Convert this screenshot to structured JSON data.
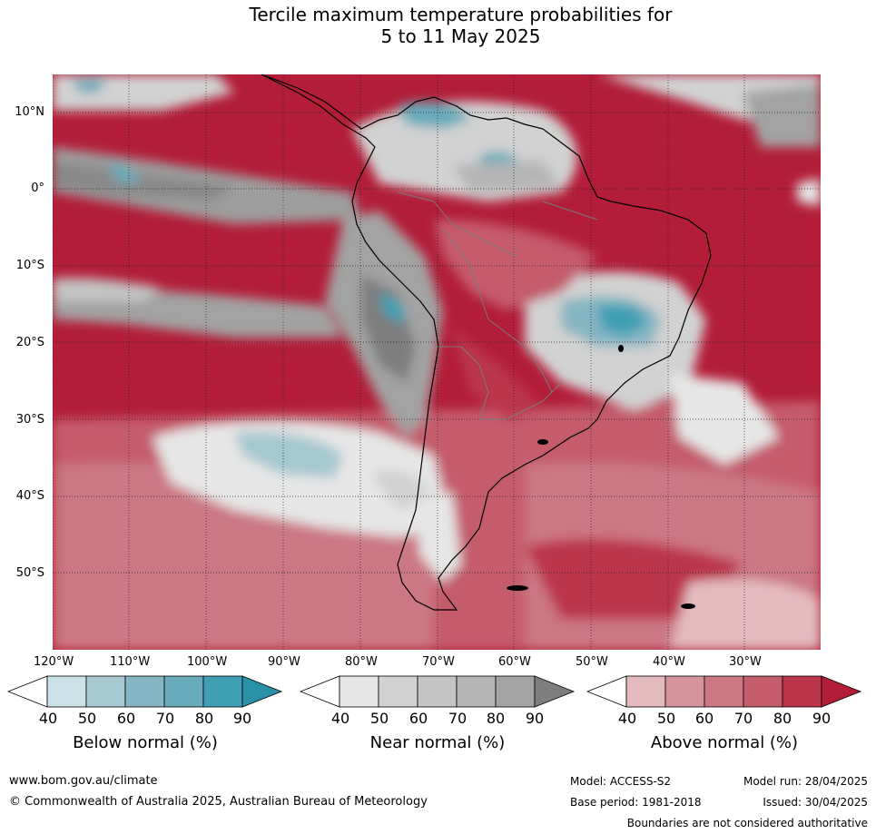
{
  "title": {
    "line1": "Tercile maximum temperature probabilities for",
    "line2": "5 to 11 May 2025"
  },
  "map": {
    "lat_labels": [
      "10°N",
      "0°",
      "10°S",
      "20°S",
      "30°S",
      "40°S",
      "50°S"
    ],
    "lon_labels": [
      "120°W",
      "110°W",
      "100°W",
      "90°W",
      "80°W",
      "70°W",
      "60°W",
      "50°W",
      "40°W",
      "30°W"
    ]
  },
  "colorbars": [
    {
      "label": "Below normal (%)",
      "ticks": [
        "40",
        "50",
        "60",
        "70",
        "80",
        "90"
      ],
      "colors": [
        "#c9e1e7",
        "#a6c8d0",
        "#86b5c3",
        "#68abbb",
        "#3fa0b3",
        "#2a91a6"
      ]
    },
    {
      "label": "Near normal (%)",
      "ticks": [
        "40",
        "50",
        "60",
        "70",
        "80",
        "90"
      ],
      "colors": [
        "#e6e6e6",
        "#d2d2d2",
        "#c4c4c4",
        "#b5b5b5",
        "#a3a3a3",
        "#7e7e7e"
      ]
    },
    {
      "label": "Above normal (%)",
      "ticks": [
        "40",
        "50",
        "60",
        "70",
        "80",
        "90"
      ],
      "colors": [
        "#e3bbbf",
        "#d6959c",
        "#cc7782",
        "#c45c6a",
        "#bb3548",
        "#b31d37"
      ]
    }
  ],
  "footer": {
    "website": "www.bom.gov.au/climate",
    "copyright": "© Commonwealth of Australia 2025, Australian Bureau of Meteorology",
    "model": "Model: ACCESS-S2",
    "model_run": "Model run: 28/04/2025",
    "base_period": "Base period: 1981-2018",
    "issued": "Issued: 30/04/2025",
    "disclaimer": "Boundaries are not considered authoritative"
  }
}
